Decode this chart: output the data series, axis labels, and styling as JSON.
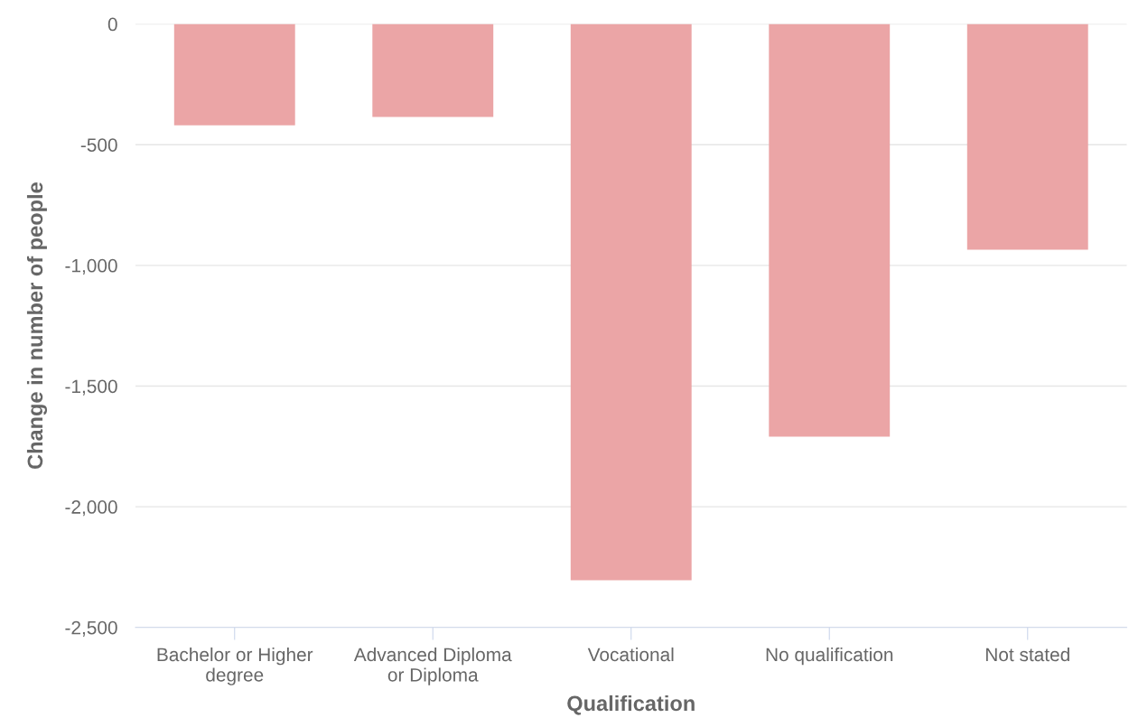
{
  "chart_data": {
    "type": "bar",
    "xlabel": "Qualification",
    "ylabel": "Change in number of people",
    "categories": [
      "Bachelor or Higher\ndegree",
      "Advanced Diploma\nor Diploma",
      "Vocational",
      "No qualification",
      "Not stated"
    ],
    "values": [
      -420,
      -385,
      -2305,
      -1710,
      -935
    ],
    "color": "#eba5a6",
    "ylim": [
      -2500,
      0
    ],
    "yticks": [
      {
        "value": -2500,
        "label": "-2,500"
      },
      {
        "value": -2000,
        "label": "-2,000"
      },
      {
        "value": -1500,
        "label": "-1,500"
      },
      {
        "value": -1000,
        "label": "-1,000"
      },
      {
        "value": -500,
        "label": "-500"
      },
      0
    ],
    "grid": "y"
  }
}
